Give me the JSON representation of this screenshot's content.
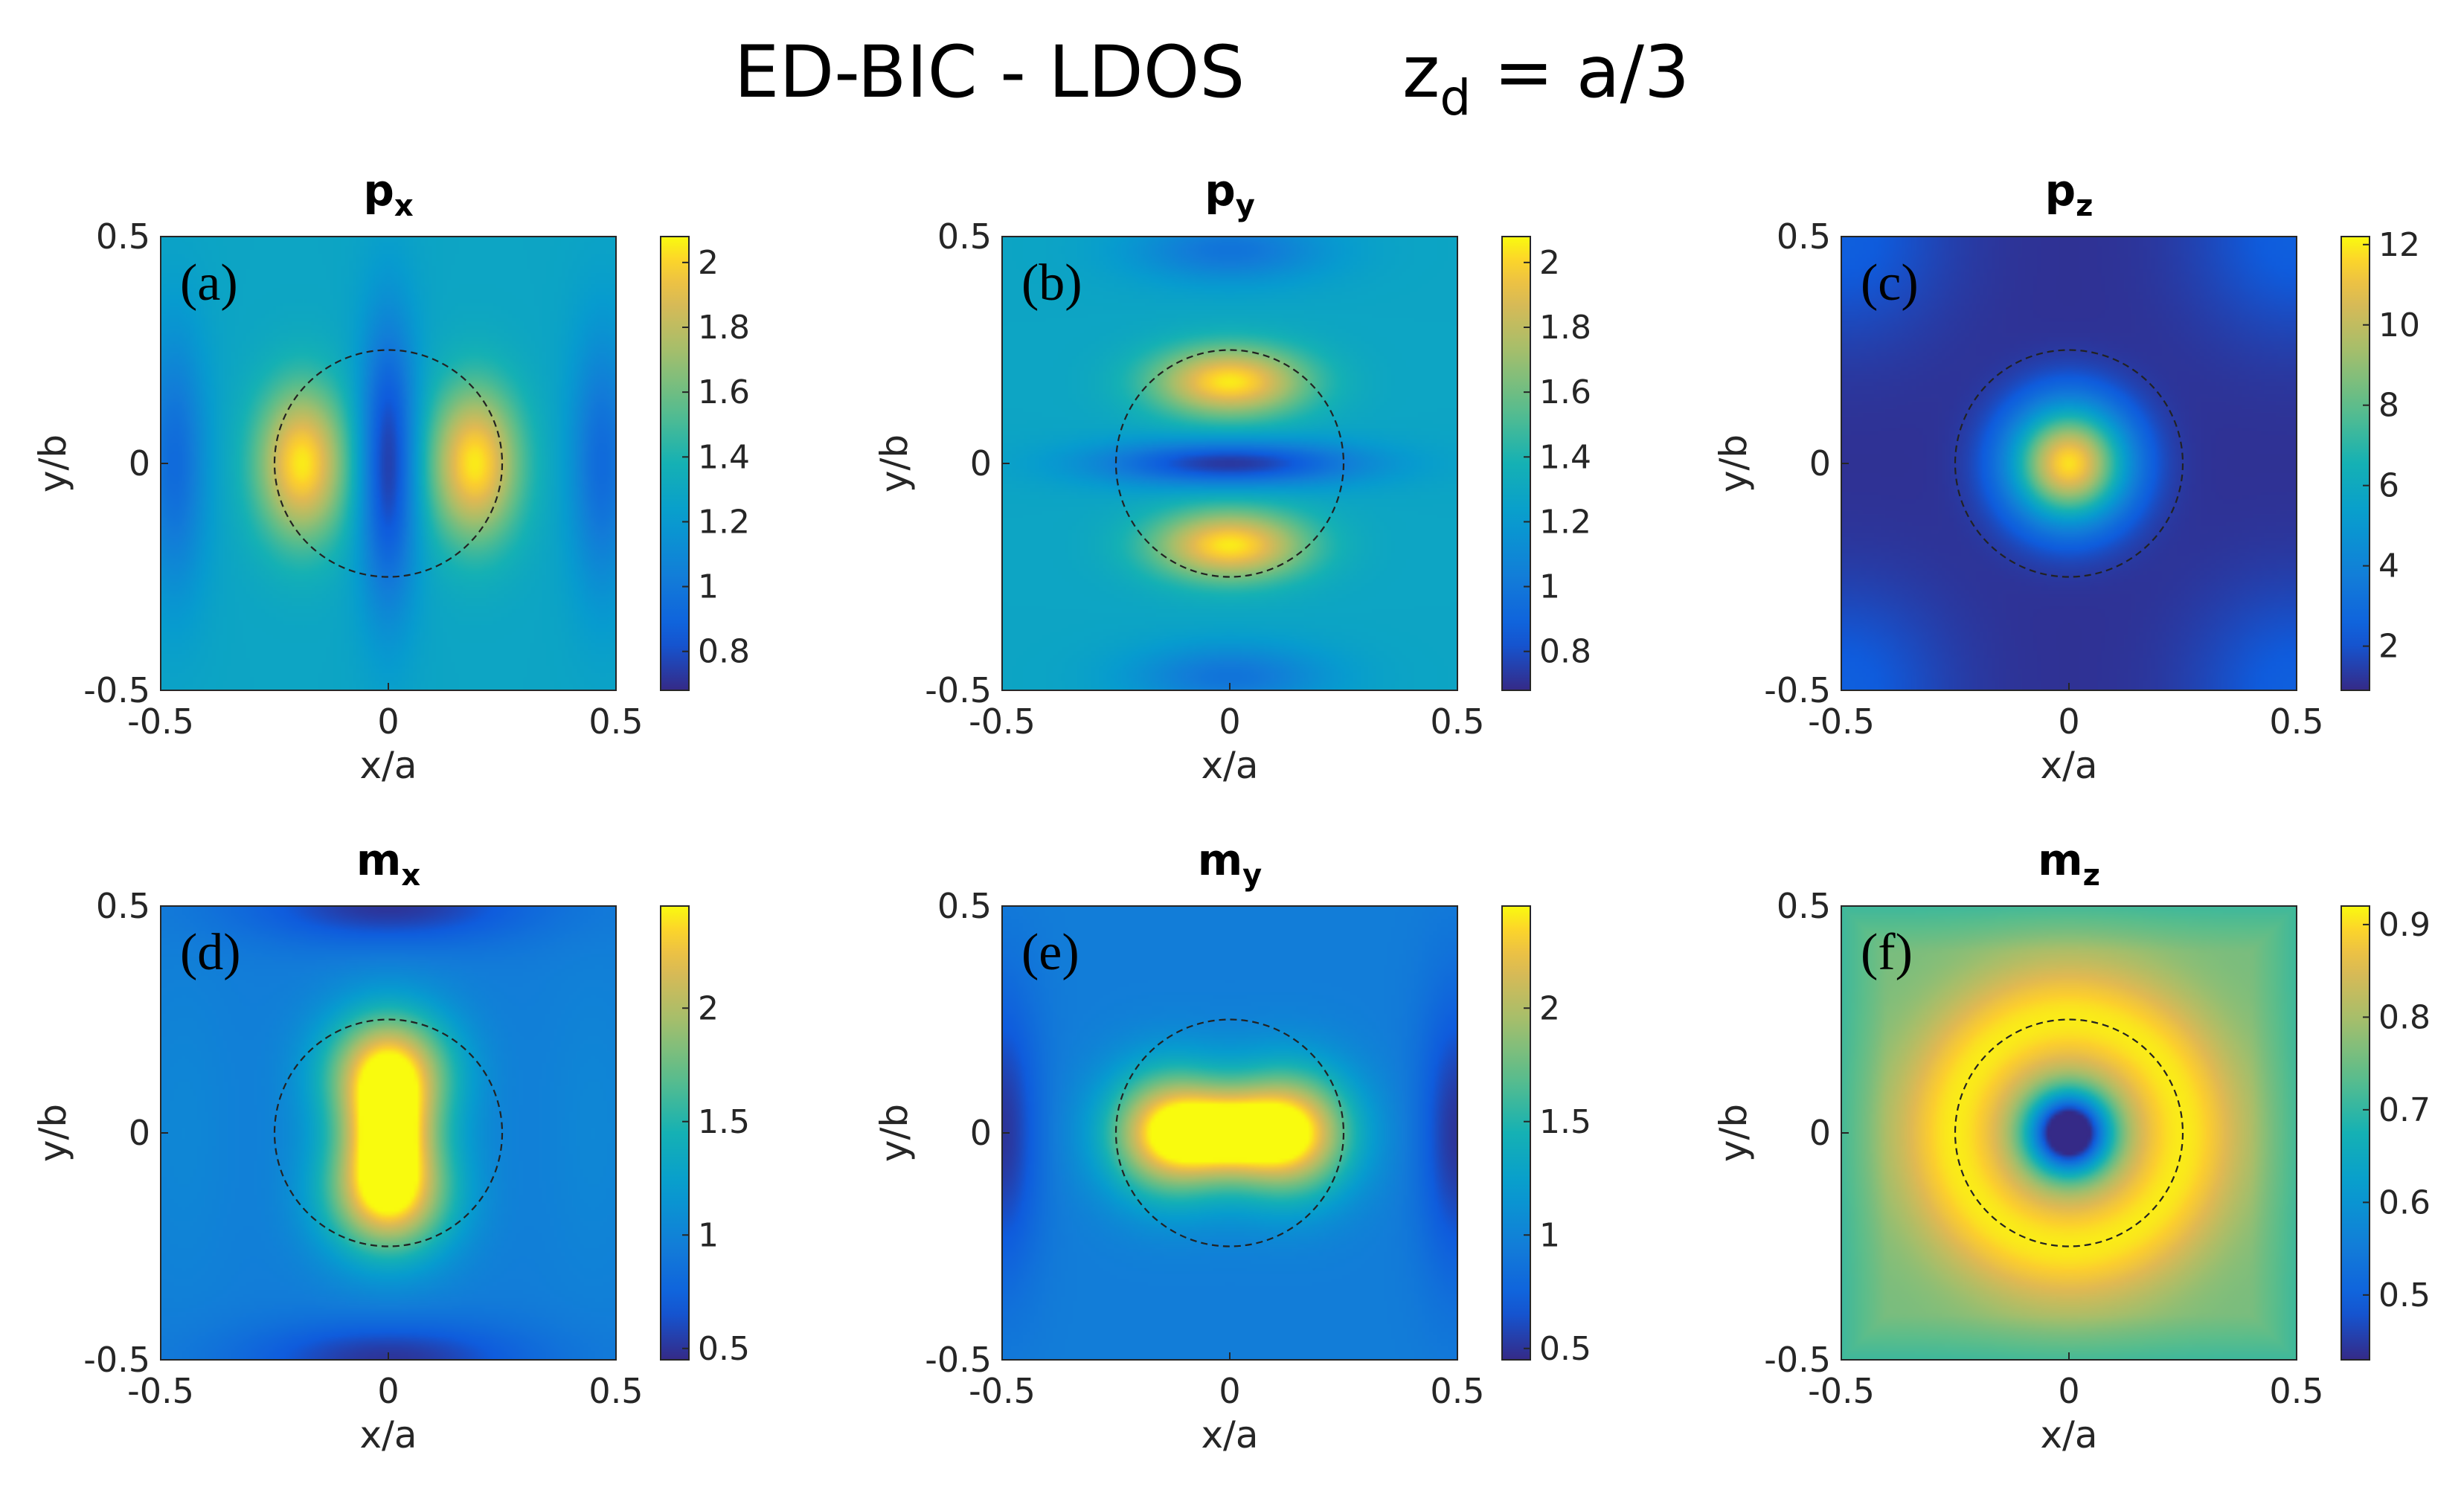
{
  "figure": {
    "title": "ED-BIC - LDOS",
    "title_eq": {
      "base": "z",
      "sub": "d",
      "rhs": " = a/3"
    }
  },
  "chart_data": [
    {
      "type": "heatmap",
      "id": "a",
      "panel_label": "(a)",
      "title": {
        "base": "p",
        "sub": "x"
      },
      "xlabel": "x/a",
      "ylabel": "y/b",
      "xlim": [
        -0.5,
        0.5
      ],
      "ylim": [
        -0.5,
        0.5
      ],
      "xticks": [
        -0.5,
        0,
        0.5
      ],
      "yticks": [
        -0.5,
        0,
        0.5
      ],
      "xticklabels": [
        "-0.5",
        "0",
        "0.5"
      ],
      "yticklabels": [
        "-0.5",
        "0",
        "0.5"
      ],
      "circle_radius": 0.25,
      "clim": [
        0.68,
        2.08
      ],
      "colorbar_ticks": [
        0.8,
        1,
        1.2,
        1.4,
        1.6,
        1.8,
        2
      ],
      "colorbar_ticklabels": [
        "0.8",
        "1",
        "1.2",
        "1.4",
        "1.6",
        "1.8",
        "2"
      ],
      "field": {
        "pattern": "px",
        "background": 1.28,
        "peak": 2.05,
        "min": 0.72
      }
    },
    {
      "type": "heatmap",
      "id": "b",
      "panel_label": "(b)",
      "title": {
        "base": "p",
        "sub": "y"
      },
      "xlabel": "x/a",
      "ylabel": "y/b",
      "xlim": [
        -0.5,
        0.5
      ],
      "ylim": [
        -0.5,
        0.5
      ],
      "xticks": [
        -0.5,
        0,
        0.5
      ],
      "yticks": [
        -0.5,
        0,
        0.5
      ],
      "xticklabels": [
        "-0.5",
        "0",
        "0.5"
      ],
      "yticklabels": [
        "-0.5",
        "0",
        "0.5"
      ],
      "circle_radius": 0.25,
      "clim": [
        0.68,
        2.08
      ],
      "colorbar_ticks": [
        0.8,
        1,
        1.2,
        1.4,
        1.6,
        1.8,
        2
      ],
      "colorbar_ticklabels": [
        "0.8",
        "1",
        "1.2",
        "1.4",
        "1.6",
        "1.8",
        "2"
      ],
      "field": {
        "pattern": "py",
        "background": 1.28,
        "peak": 2.05,
        "min": 0.72
      }
    },
    {
      "type": "heatmap",
      "id": "c",
      "panel_label": "(c)",
      "title": {
        "base": "p",
        "sub": "z"
      },
      "xlabel": "x/a",
      "ylabel": "y/b",
      "xlim": [
        -0.5,
        0.5
      ],
      "ylim": [
        -0.5,
        0.5
      ],
      "xticks": [
        -0.5,
        0,
        0.5
      ],
      "yticks": [
        -0.5,
        0,
        0.5
      ],
      "xticklabels": [
        "-0.5",
        "0",
        "0.5"
      ],
      "yticklabels": [
        "-0.5",
        "0",
        "0.5"
      ],
      "circle_radius": 0.25,
      "clim": [
        0.9,
        12.2
      ],
      "colorbar_ticks": [
        2,
        4,
        6,
        8,
        10,
        12
      ],
      "colorbar_ticklabels": [
        "2",
        "4",
        "6",
        "8",
        "10",
        "12"
      ],
      "field": {
        "pattern": "pz",
        "background": 1.1,
        "peak": 11.8,
        "min": 1.0
      }
    },
    {
      "type": "heatmap",
      "id": "d",
      "panel_label": "(d)",
      "title": {
        "base": "m",
        "sub": "x"
      },
      "xlabel": "x/a",
      "ylabel": "y/b",
      "xlim": [
        -0.5,
        0.5
      ],
      "ylim": [
        -0.5,
        0.5
      ],
      "xticks": [
        -0.5,
        0,
        0.5
      ],
      "yticks": [
        -0.5,
        0,
        0.5
      ],
      "xticklabels": [
        "-0.5",
        "0",
        "0.5"
      ],
      "yticklabels": [
        "-0.5",
        "0",
        "0.5"
      ],
      "circle_radius": 0.25,
      "clim": [
        0.45,
        2.45
      ],
      "colorbar_ticks": [
        0.5,
        1,
        1.5,
        2
      ],
      "colorbar_ticklabels": [
        "0.5",
        "1",
        "1.5",
        "2"
      ],
      "field": {
        "pattern": "mx",
        "background": 0.95,
        "peak": 2.4,
        "min": 0.5
      }
    },
    {
      "type": "heatmap",
      "id": "e",
      "panel_label": "(e)",
      "title": {
        "base": "m",
        "sub": "y"
      },
      "xlabel": "x/a",
      "ylabel": "y/b",
      "xlim": [
        -0.5,
        0.5
      ],
      "ylim": [
        -0.5,
        0.5
      ],
      "xticks": [
        -0.5,
        0,
        0.5
      ],
      "yticks": [
        -0.5,
        0,
        0.5
      ],
      "xticklabels": [
        "-0.5",
        "0",
        "0.5"
      ],
      "yticklabels": [
        "-0.5",
        "0",
        "0.5"
      ],
      "circle_radius": 0.25,
      "clim": [
        0.45,
        2.45
      ],
      "colorbar_ticks": [
        0.5,
        1,
        1.5,
        2
      ],
      "colorbar_ticklabels": [
        "0.5",
        "1",
        "1.5",
        "2"
      ],
      "field": {
        "pattern": "my",
        "background": 0.95,
        "peak": 2.4,
        "min": 0.5
      }
    },
    {
      "type": "heatmap",
      "id": "f",
      "panel_label": "(f)",
      "title": {
        "base": "m",
        "sub": "z"
      },
      "xlabel": "x/a",
      "ylabel": "y/b",
      "xlim": [
        -0.5,
        0.5
      ],
      "ylim": [
        -0.5,
        0.5
      ],
      "xticks": [
        -0.5,
        0,
        0.5
      ],
      "yticks": [
        -0.5,
        0,
        0.5
      ],
      "xticklabels": [
        "-0.5",
        "0",
        "0.5"
      ],
      "yticklabels": [
        "-0.5",
        "0",
        "0.5"
      ],
      "circle_radius": 0.25,
      "clim": [
        0.43,
        0.92
      ],
      "colorbar_ticks": [
        0.5,
        0.6,
        0.7,
        0.8,
        0.9
      ],
      "colorbar_ticklabels": [
        "0.5",
        "0.6",
        "0.7",
        "0.8",
        "0.9"
      ],
      "field": {
        "pattern": "mz",
        "background": 0.76,
        "peak": 0.91,
        "min": 0.44
      }
    }
  ]
}
